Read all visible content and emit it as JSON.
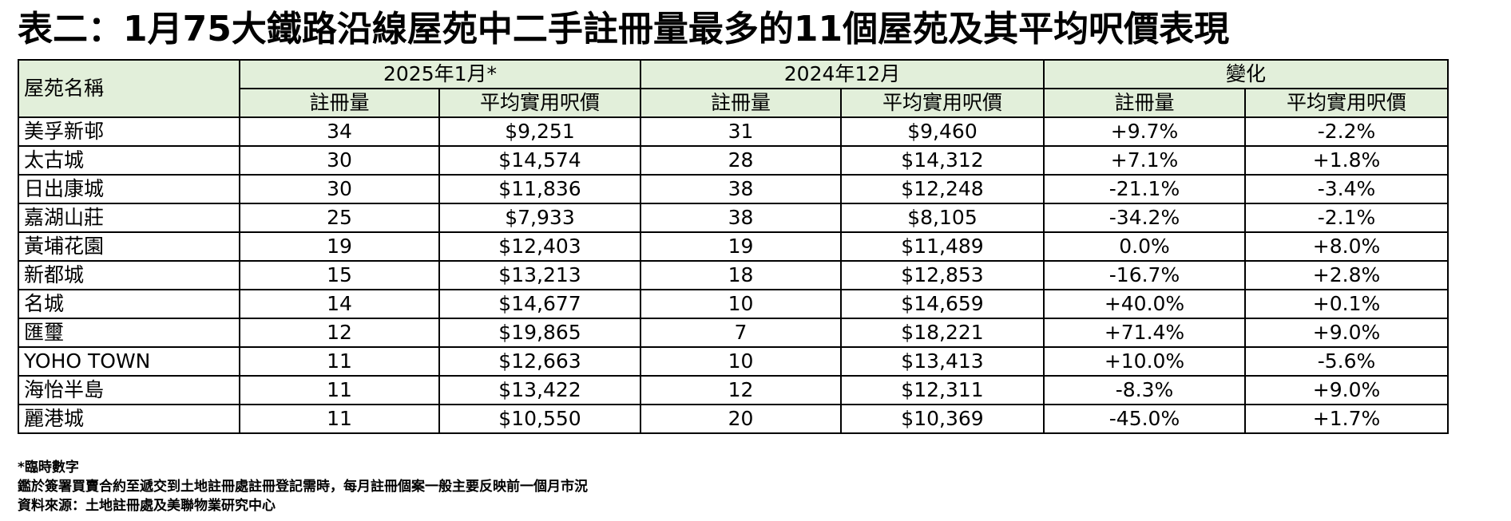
{
  "title": "表二：1月75大鐵路沿線屋苑中二手註冊量最多的11個屋苑及其平均呎價表現",
  "table": {
    "name_header": "屋苑名稱",
    "groups": [
      "2025年1月*",
      "2024年12月",
      "變化"
    ],
    "subheaders": [
      "註冊量",
      "平均實用呎價",
      "註冊量",
      "平均實用呎價",
      "註冊量",
      "平均實用呎價"
    ],
    "rows": [
      [
        "美孚新邨",
        "34",
        "$9,251",
        "31",
        "$9,460",
        "+9.7%",
        "-2.2%"
      ],
      [
        "太古城",
        "30",
        "$14,574",
        "28",
        "$14,312",
        "+7.1%",
        "+1.8%"
      ],
      [
        "日出康城",
        "30",
        "$11,836",
        "38",
        "$12,248",
        "-21.1%",
        "-3.4%"
      ],
      [
        "嘉湖山莊",
        "25",
        "$7,933",
        "38",
        "$8,105",
        "-34.2%",
        "-2.1%"
      ],
      [
        "黃埔花園",
        "19",
        "$12,403",
        "19",
        "$11,489",
        "0.0%",
        "+8.0%"
      ],
      [
        "新都城",
        "15",
        "$13,213",
        "18",
        "$12,853",
        "-16.7%",
        "+2.8%"
      ],
      [
        "名城",
        "14",
        "$14,677",
        "10",
        "$14,659",
        "+40.0%",
        "+0.1%"
      ],
      [
        "匯璽",
        "12",
        "$19,865",
        "7",
        "$18,221",
        "+71.4%",
        "+9.0%"
      ],
      [
        "YOHO TOWN",
        "11",
        "$12,663",
        "10",
        "$13,413",
        "+10.0%",
        "-5.6%"
      ],
      [
        "海怡半島",
        "11",
        "$13,422",
        "12",
        "$12,311",
        "-8.3%",
        "+9.0%"
      ],
      [
        "麗港城",
        "11",
        "$10,550",
        "20",
        "$10,369",
        "-45.0%",
        "+1.7%"
      ]
    ]
  },
  "notes": [
    "*臨時數字",
    "鑑於簽署買賣合約至遞交到土地註冊處註冊登記需時，每月註冊個案一般主要反映前一個月市況",
    "資料來源：土地註冊處及美聯物業研究中心"
  ],
  "colors": {
    "header_bg": "#e2efda",
    "border": "#000000"
  }
}
